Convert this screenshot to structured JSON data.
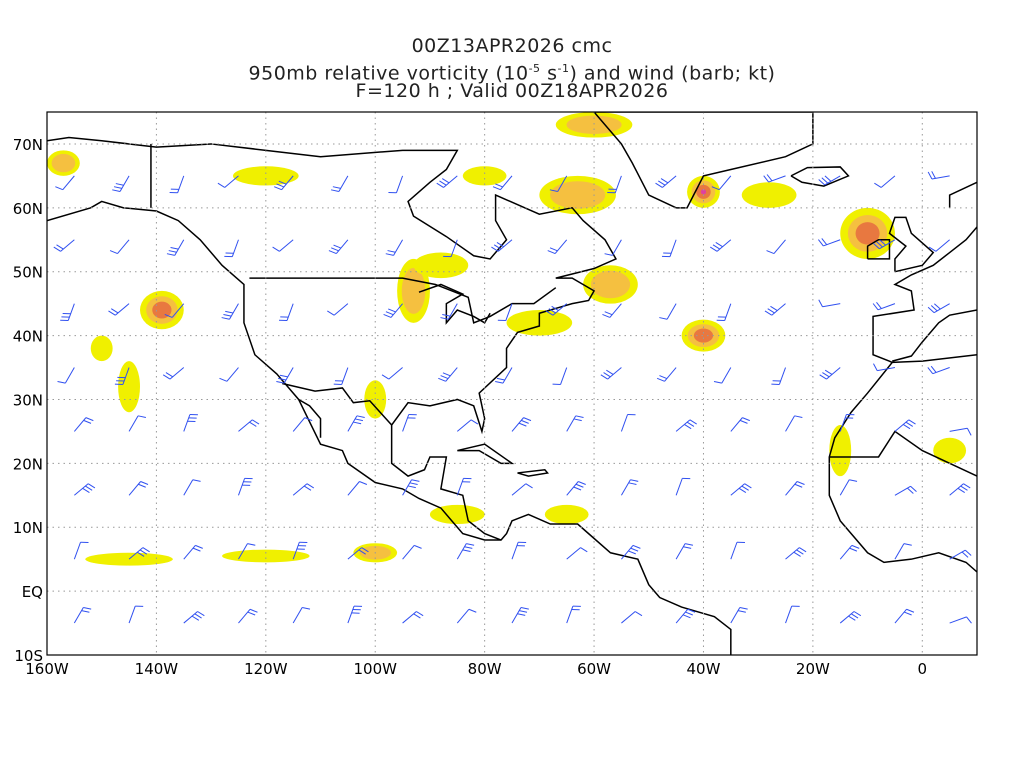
{
  "title": {
    "line1": "00Z13APR2026 cmc",
    "line2_prefix": "950mb relative vorticity (10",
    "line2_exp1": "-5",
    "line2_mid": " s",
    "line2_exp2": "-1",
    "line2_suffix": ") and wind (barb; kt)",
    "line3": "F=120 h ; Valid 00Z18APR2026"
  },
  "axes": {
    "lon_range": [
      -160,
      10
    ],
    "lat_range": [
      -10,
      75
    ],
    "x_ticks": [
      {
        "v": -160,
        "label": "160W"
      },
      {
        "v": -140,
        "label": "140W"
      },
      {
        "v": -120,
        "label": "120W"
      },
      {
        "v": -100,
        "label": "100W"
      },
      {
        "v": -80,
        "label": "80W"
      },
      {
        "v": -60,
        "label": "60W"
      },
      {
        "v": -40,
        "label": "40W"
      },
      {
        "v": -20,
        "label": "20W"
      },
      {
        "v": 0,
        "label": "0"
      }
    ],
    "y_ticks": [
      {
        "v": -10,
        "label": "10S"
      },
      {
        "v": 0,
        "label": "EQ"
      },
      {
        "v": 10,
        "label": "10N"
      },
      {
        "v": 20,
        "label": "20N"
      },
      {
        "v": 30,
        "label": "30N"
      },
      {
        "v": 40,
        "label": "40N"
      },
      {
        "v": 50,
        "label": "50N"
      },
      {
        "v": 60,
        "label": "60N"
      },
      {
        "v": 70,
        "label": "70N"
      }
    ]
  },
  "colors": {
    "level1": "#f0f000",
    "level2": "#f5c040",
    "level3": "#e87840",
    "level4": "#e040a0",
    "land": "#000000",
    "barb": "#3050f0",
    "grid": "#999999"
  },
  "vorticity_features": [
    {
      "lon": -40,
      "lat": 62.5,
      "rx": 3,
      "ry": 2.5,
      "level": 4
    },
    {
      "lon": -10,
      "lat": 56,
      "rx": 5,
      "ry": 4,
      "level": 3
    },
    {
      "lon": -139,
      "lat": 44,
      "rx": 4,
      "ry": 3,
      "level": 3
    },
    {
      "lon": -40,
      "lat": 40,
      "rx": 4,
      "ry": 2.5,
      "level": 3
    },
    {
      "lon": -93,
      "lat": 47,
      "rx": 3,
      "ry": 5,
      "level": 2
    },
    {
      "lon": -88,
      "lat": 51,
      "rx": 5,
      "ry": 2,
      "level": 1
    },
    {
      "lon": -63,
      "lat": 62,
      "rx": 7,
      "ry": 3,
      "level": 2
    },
    {
      "lon": -60,
      "lat": 73,
      "rx": 7,
      "ry": 2,
      "level": 2
    },
    {
      "lon": -57,
      "lat": 48,
      "rx": 5,
      "ry": 3,
      "level": 2
    },
    {
      "lon": -70,
      "lat": 42,
      "rx": 6,
      "ry": 2,
      "level": 1
    },
    {
      "lon": -100,
      "lat": 6,
      "rx": 4,
      "ry": 1.5,
      "level": 2
    },
    {
      "lon": -157,
      "lat": 67,
      "rx": 3,
      "ry": 2,
      "level": 2
    },
    {
      "lon": -145,
      "lat": 32,
      "rx": 2,
      "ry": 4,
      "level": 1
    },
    {
      "lon": -120,
      "lat": 5.5,
      "rx": 8,
      "ry": 1,
      "level": 1
    },
    {
      "lon": -145,
      "lat": 5,
      "rx": 8,
      "ry": 1,
      "level": 1
    },
    {
      "lon": -85,
      "lat": 12,
      "rx": 5,
      "ry": 1.5,
      "level": 1
    },
    {
      "lon": 5,
      "lat": 22,
      "rx": 3,
      "ry": 2,
      "level": 1
    },
    {
      "lon": -28,
      "lat": 62,
      "rx": 5,
      "ry": 2,
      "level": 1
    },
    {
      "lon": -150,
      "lat": 38,
      "rx": 2,
      "ry": 2,
      "level": 1
    },
    {
      "lon": -65,
      "lat": 12,
      "rx": 4,
      "ry": 1.5,
      "level": 1
    },
    {
      "lon": -15,
      "lat": 22,
      "rx": 2,
      "ry": 4,
      "level": 1
    },
    {
      "lon": -100,
      "lat": 30,
      "rx": 2,
      "ry": 3,
      "level": 1
    },
    {
      "lon": -120,
      "lat": 65,
      "rx": 6,
      "ry": 1.5,
      "level": 1
    },
    {
      "lon": -80,
      "lat": 65,
      "rx": 4,
      "ry": 1.5,
      "level": 1
    }
  ]
}
